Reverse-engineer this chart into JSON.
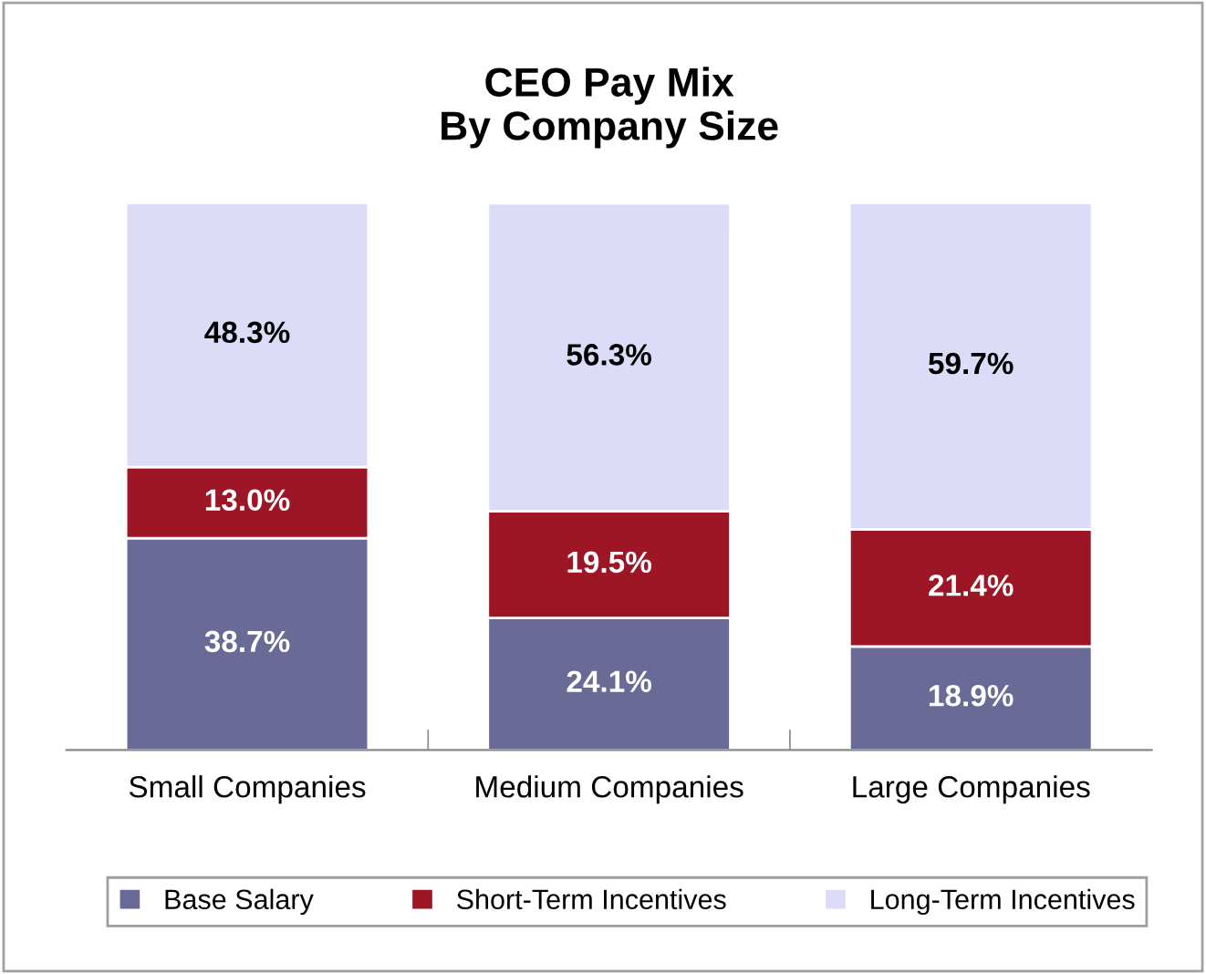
{
  "chart_data": {
    "type": "bar",
    "title": "CEO Pay Mix\nBy Company Size",
    "stacked": true,
    "categories": [
      "Small Companies",
      "Medium Companies",
      "Large Companies"
    ],
    "series": [
      {
        "name": "Base Salary",
        "color": "#6a6a96",
        "values": [
          38.7,
          24.1,
          18.9
        ],
        "value_labels": [
          "38.7%",
          "24.1%",
          "18.9%"
        ]
      },
      {
        "name": "Short-Term Incentives",
        "color": "#9c1626",
        "values": [
          13.0,
          19.5,
          21.4
        ],
        "value_labels": [
          "13.0%",
          "19.5%",
          "21.4%"
        ]
      },
      {
        "name": "Long-Term Incentives",
        "color": "#dcdcf8",
        "values": [
          48.3,
          56.3,
          59.7
        ],
        "value_labels": [
          "48.3%",
          "56.3%",
          "59.7%"
        ]
      }
    ],
    "legend": "bottom",
    "grid": false
  }
}
